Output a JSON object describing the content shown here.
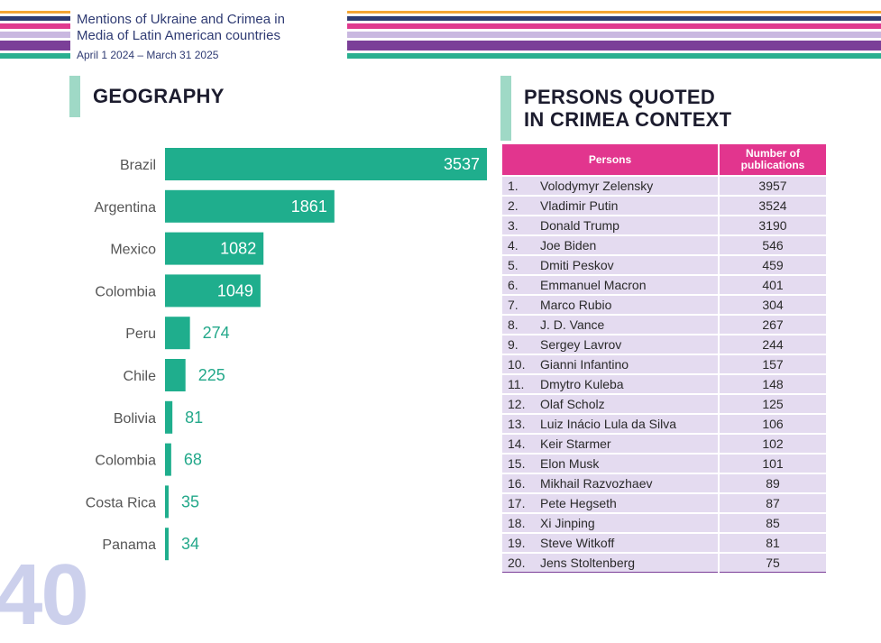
{
  "header": {
    "title_line1": "Mentions of Ukraine and Crimea in",
    "title_line2": "Media of Latin American countries",
    "date_range": "April 1 2024 – March 31 2025"
  },
  "geography": {
    "title": "GEOGRAPHY"
  },
  "chart_data": {
    "type": "bar",
    "orientation": "horizontal",
    "title": "GEOGRAPHY",
    "categories": [
      "Brazil",
      "Argentina",
      "Mexico",
      "Colombia",
      "Peru",
      "Chile",
      "Bolivia",
      "Colombia",
      "Costa Rica",
      "Panama"
    ],
    "values": [
      3537,
      1861,
      1082,
      1049,
      274,
      225,
      81,
      68,
      35,
      34
    ],
    "xlabel": "",
    "ylabel": "",
    "xlim": [
      0,
      3537
    ],
    "grid": false,
    "bar_color": "#1fae8d"
  },
  "persons": {
    "title_line1": "PERSONS QUOTED",
    "title_line2": "IN CRIMEA CONTEXT",
    "col_person": "Persons",
    "col_count_line1": "Number of",
    "col_count_line2": "publications",
    "rows": [
      {
        "rank": "1.",
        "name": "Volodymyr Zelensky",
        "count": "3957"
      },
      {
        "rank": "2.",
        "name": "Vladimir Putin",
        "count": "3524"
      },
      {
        "rank": "3.",
        "name": "Donald Trump",
        "count": "3190"
      },
      {
        "rank": "4.",
        "name": "Joe Biden",
        "count": "546"
      },
      {
        "rank": "5.",
        "name": "Dmiti Peskov",
        "count": "459"
      },
      {
        "rank": "6.",
        "name": "Emmanuel Macron",
        "count": "401"
      },
      {
        "rank": "7.",
        "name": "Marco Rubio",
        "count": "304"
      },
      {
        "rank": "8.",
        "name": "J. D. Vance",
        "count": "267"
      },
      {
        "rank": "9.",
        "name": "Sergey Lavrov",
        "count": "244"
      },
      {
        "rank": "10.",
        "name": "Gianni Infantino",
        "count": "157"
      },
      {
        "rank": "11.",
        "name": "Dmytro Kuleba",
        "count": "148"
      },
      {
        "rank": "12.",
        "name": "Olaf Scholz",
        "count": "125"
      },
      {
        "rank": "13.",
        "name": "Luiz Inácio Lula da Silva",
        "count": "106"
      },
      {
        "rank": "14.",
        "name": "Keir Starmer",
        "count": "102"
      },
      {
        "rank": "15.",
        "name": "Elon Musk",
        "count": "101"
      },
      {
        "rank": "16.",
        "name": "Mikhail Razvozhaev",
        "count": "89"
      },
      {
        "rank": "17.",
        "name": "Pete Hegseth",
        "count": "87"
      },
      {
        "rank": "18.",
        "name": "Xi Jinping",
        "count": "85"
      },
      {
        "rank": "19.",
        "name": "Steve Witkoff",
        "count": "81"
      },
      {
        "rank": "20.",
        "name": "Jens Stoltenberg",
        "count": "75"
      }
    ]
  },
  "page_number": "40"
}
